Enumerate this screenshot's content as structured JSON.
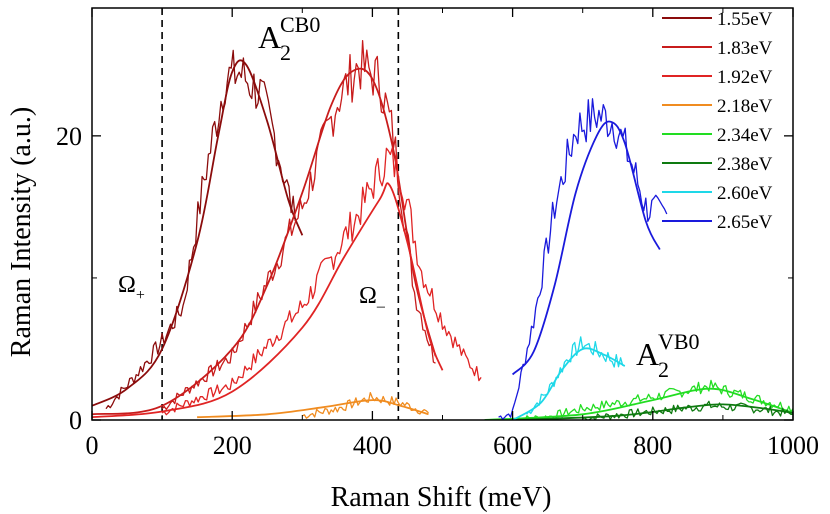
{
  "chart_data": {
    "type": "line",
    "xlabel": "Raman Shift (meV)",
    "ylabel": "Raman Intensity (a.u.)",
    "xlim": [
      0,
      1000
    ],
    "ylim": [
      0,
      29
    ],
    "xticks": [
      0,
      200,
      400,
      600,
      800,
      1000
    ],
    "xtick_labels": [
      "0",
      "200",
      "400",
      "600",
      "800",
      "1000"
    ],
    "yticks": [
      0,
      20
    ],
    "ytick_labels": [
      "0",
      "20"
    ],
    "grid": false,
    "legend_position": "top-right",
    "vlines": [
      {
        "x": 100,
        "label_main": "Ω",
        "label_sub": "+"
      },
      {
        "x": 437,
        "label_main": "Ω",
        "label_sub": "–"
      }
    ],
    "annotations": [
      {
        "text": "A",
        "sub": "2",
        "sup": "CB0",
        "x": 245,
        "y": 26.5
      },
      {
        "text": "A",
        "sub": "2",
        "sup": "VB0",
        "x": 775,
        "y": 3.5
      }
    ],
    "series": [
      {
        "name": "1.55eV",
        "color": "#8b0c0c",
        "fit": [
          [
            0,
            1.0
          ],
          [
            50,
            2.2
          ],
          [
            100,
            5.0
          ],
          [
            150,
            12.5
          ],
          [
            180,
            20.0
          ],
          [
            200,
            24.5
          ],
          [
            220,
            25.0
          ],
          [
            250,
            21.0
          ],
          [
            280,
            15.5
          ],
          [
            300,
            13.0
          ]
        ],
        "exp": [
          [
            20,
            0.8
          ],
          [
            60,
            3.0
          ],
          [
            100,
            5.5
          ],
          [
            130,
            8.0
          ],
          [
            160,
            17.0
          ],
          [
            190,
            24.0
          ],
          [
            210,
            24.5
          ],
          [
            240,
            23.0
          ],
          [
            260,
            20.0
          ],
          [
            290,
            14.0
          ]
        ]
      },
      {
        "name": "1.83eV",
        "color": "#c81c1c",
        "fit": [
          [
            0,
            0.4
          ],
          [
            100,
            1.0
          ],
          [
            200,
            5.0
          ],
          [
            250,
            9.5
          ],
          [
            300,
            16.0
          ],
          [
            340,
            22.0
          ],
          [
            370,
            24.5
          ],
          [
            400,
            24.0
          ],
          [
            430,
            19.0
          ],
          [
            460,
            10.0
          ],
          [
            490,
            4.5
          ]
        ],
        "exp": [
          [
            100,
            0.8
          ],
          [
            200,
            4.5
          ],
          [
            300,
            15.0
          ],
          [
            350,
            22.5
          ],
          [
            380,
            25.0
          ],
          [
            410,
            24.0
          ],
          [
            430,
            20.0
          ],
          [
            460,
            9.0
          ],
          [
            490,
            4.0
          ]
        ]
      },
      {
        "name": "1.92eV",
        "color": "#e02424",
        "fit": [
          [
            0,
            0.2
          ],
          [
            100,
            0.6
          ],
          [
            200,
            2.0
          ],
          [
            300,
            6.5
          ],
          [
            360,
            11.5
          ],
          [
            410,
            15.5
          ],
          [
            425,
            16.5
          ],
          [
            450,
            12.5
          ],
          [
            480,
            6.0
          ],
          [
            500,
            3.5
          ]
        ],
        "exp": [
          [
            100,
            0.5
          ],
          [
            200,
            2.5
          ],
          [
            300,
            8.0
          ],
          [
            380,
            14.5
          ],
          [
            420,
            18.5
          ],
          [
            440,
            17.5
          ],
          [
            470,
            10.5
          ],
          [
            500,
            7.0
          ],
          [
            530,
            4.5
          ],
          [
            555,
            3.0
          ]
        ]
      },
      {
        "name": "2.18eV",
        "color": "#f08c20",
        "fit": [
          [
            150,
            0.2
          ],
          [
            250,
            0.4
          ],
          [
            330,
            0.9
          ],
          [
            400,
            1.4
          ],
          [
            440,
            1.0
          ],
          [
            480,
            0.4
          ]
        ],
        "exp": [
          [
            300,
            0.3
          ],
          [
            350,
            0.8
          ],
          [
            400,
            1.6
          ],
          [
            440,
            1.2
          ],
          [
            480,
            0.5
          ]
        ]
      },
      {
        "name": "2.34eV",
        "color": "#22dd22",
        "fit": [
          [
            560,
            0.0
          ],
          [
            700,
            0.4
          ],
          [
            800,
            1.4
          ],
          [
            880,
            2.2
          ],
          [
            940,
            1.5
          ],
          [
            1000,
            0.5
          ]
        ],
        "exp": [
          [
            600,
            0.0
          ],
          [
            650,
            0.2
          ],
          [
            700,
            0.8
          ],
          [
            800,
            1.6
          ],
          [
            880,
            2.4
          ],
          [
            940,
            1.6
          ],
          [
            1000,
            0.8
          ]
        ]
      },
      {
        "name": "2.38eV",
        "color": "#0e7a10",
        "fit": [
          [
            600,
            0.0
          ],
          [
            750,
            0.3
          ],
          [
            850,
            0.9
          ],
          [
            900,
            1.1
          ],
          [
            960,
            0.8
          ],
          [
            1000,
            0.5
          ]
        ],
        "exp": [
          [
            700,
            0.1
          ],
          [
            800,
            0.6
          ],
          [
            880,
            1.0
          ],
          [
            950,
            0.8
          ],
          [
            1000,
            0.4
          ]
        ]
      },
      {
        "name": "2.60eV",
        "color": "#1ed8e8",
        "fit": [
          [
            600,
            0.0
          ],
          [
            640,
            1.2
          ],
          [
            670,
            3.5
          ],
          [
            700,
            5.0
          ],
          [
            730,
            4.6
          ],
          [
            760,
            3.8
          ]
        ],
        "exp": [
          [
            620,
            0.4
          ],
          [
            650,
            2.0
          ],
          [
            680,
            4.5
          ],
          [
            700,
            5.4
          ],
          [
            730,
            4.6
          ],
          [
            760,
            3.8
          ]
        ]
      },
      {
        "name": "2.65eV",
        "color": "#1a1adc",
        "fit": [
          [
            600,
            3.2
          ],
          [
            630,
            4.8
          ],
          [
            660,
            9.5
          ],
          [
            690,
            16.0
          ],
          [
            720,
            20.0
          ],
          [
            740,
            21.0
          ],
          [
            760,
            19.5
          ],
          [
            790,
            14.0
          ],
          [
            810,
            12.0
          ]
        ],
        "exp": [
          [
            580,
            0.2
          ],
          [
            600,
            0.5
          ],
          [
            630,
            7.0
          ],
          [
            660,
            15.0
          ],
          [
            690,
            20.5
          ],
          [
            720,
            21.5
          ],
          [
            745,
            21.0
          ],
          [
            770,
            18.0
          ],
          [
            790,
            15.0
          ],
          [
            810,
            14.5
          ],
          [
            820,
            14.5
          ]
        ]
      }
    ]
  }
}
